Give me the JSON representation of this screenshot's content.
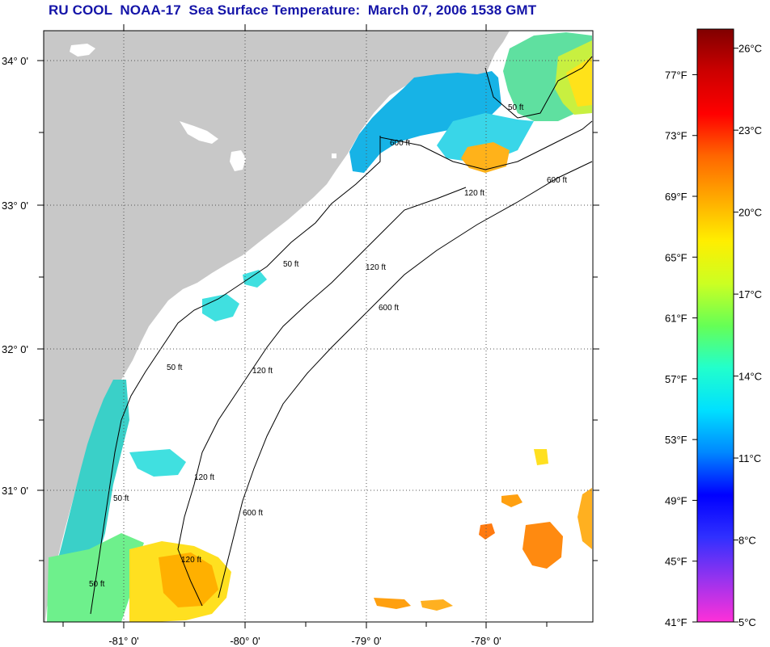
{
  "title": "RU COOL  NOAA-17  Sea Surface Temperature:  March 07, 2006 1538 GMT",
  "map": {
    "lat_labels": [
      "34° 0'",
      "33° 0'",
      "32° 0'",
      "31° 0'"
    ],
    "lon_labels": [
      "-81° 0'",
      "-80° 0'",
      "-79° 0'",
      "-78° 0'"
    ],
    "contour_labels": [
      "50 ft",
      "120 ft",
      "600 ft",
      "50 ft",
      "120 ft",
      "600 ft",
      "50 ft",
      "120 ft",
      "600 ft",
      "50 ft",
      "120 ft",
      "600 ft",
      "120 ft",
      "50 ft"
    ],
    "colors": {
      "land": "#c8c8c8",
      "ocean_nodata": "#ffffff",
      "grid": "#555555"
    }
  },
  "colorbar": {
    "fahrenheit_labels": [
      "77°F",
      "73°F",
      "69°F",
      "65°F",
      "61°F",
      "57°F",
      "53°F",
      "49°F",
      "45°F",
      "41°F"
    ],
    "celsius_labels": [
      "26°C",
      "23°C",
      "20°C",
      "17°C",
      "14°C",
      "11°C",
      "8°C",
      "5°C"
    ],
    "range_f": [
      41,
      80
    ],
    "range_c": [
      5,
      26.7
    ],
    "stops": [
      "#ff30d8",
      "#9933ee",
      "#3030ff",
      "#0000ff",
      "#0088ff",
      "#00e0ff",
      "#22ffcc",
      "#66ff55",
      "#ccff22",
      "#ffee00",
      "#ffaa00",
      "#ff6600",
      "#ff0000",
      "#cc0000",
      "#800000"
    ]
  }
}
